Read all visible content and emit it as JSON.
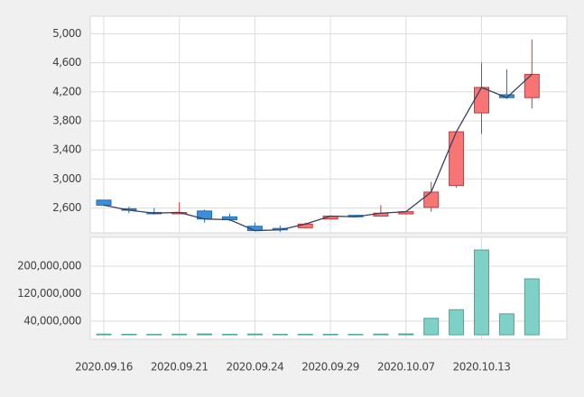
{
  "chart_data": {
    "type": "candlestick",
    "categories": [
      "2020.09.16",
      null,
      null,
      "2020.09.21",
      null,
      null,
      "2020.09.24",
      null,
      null,
      "2020.09.29",
      null,
      null,
      "2020.10.07",
      null,
      null,
      "2020.10.13",
      null,
      null
    ],
    "open": [
      2710,
      2590,
      2540,
      2530,
      2560,
      2480,
      2350,
      2320,
      2330,
      2450,
      2500,
      2490,
      2520,
      2610,
      2910,
      3910,
      4160,
      4120
    ],
    "high": [
      2710,
      2620,
      2600,
      2680,
      2580,
      2520,
      2400,
      2360,
      2400,
      2500,
      2510,
      2640,
      2560,
      2960,
      3650,
      4600,
      4510,
      4920
    ],
    "low": [
      2630,
      2530,
      2510,
      2530,
      2400,
      2420,
      2280,
      2270,
      2320,
      2440,
      2470,
      2480,
      2510,
      2550,
      2880,
      3620,
      4100,
      3970
    ],
    "close": [
      2640,
      2570,
      2530,
      2540,
      2450,
      2440,
      2290,
      2300,
      2380,
      2490,
      2480,
      2530,
      2550,
      2820,
      3650,
      4260,
      4120,
      4440
    ],
    "volume": [
      2000000,
      1500000,
      1200000,
      1800000,
      2500000,
      1600000,
      2200000,
      1400000,
      1700000,
      1500000,
      1300000,
      2100000,
      2600000,
      48000000,
      73000000,
      247000000,
      61000000,
      163000000
    ],
    "up_color": "#f87575",
    "down_color": "#3b8fd9",
    "line_color": "#3a3f5c",
    "volume_color": "#7fd1c7",
    "ylim": [
      2260,
      5240
    ],
    "yticks": [
      {
        "value": 2600,
        "label": "2,600"
      },
      {
        "value": 3000,
        "label": "3,000"
      },
      {
        "value": 3400,
        "label": "3,400"
      },
      {
        "value": 3800,
        "label": "3,800"
      },
      {
        "value": 4200,
        "label": "4,200"
      },
      {
        "value": 4600,
        "label": "4,600"
      },
      {
        "value": 5000,
        "label": "5,000"
      }
    ],
    "volume_ylim": [
      -13000000,
      284000000
    ],
    "volume_yticks": [
      {
        "value": 40000000,
        "label": "40,000,000"
      },
      {
        "value": 120000000,
        "label": "120,000,000"
      },
      {
        "value": 200000000,
        "label": "200,000,000"
      }
    ],
    "grid": true
  }
}
